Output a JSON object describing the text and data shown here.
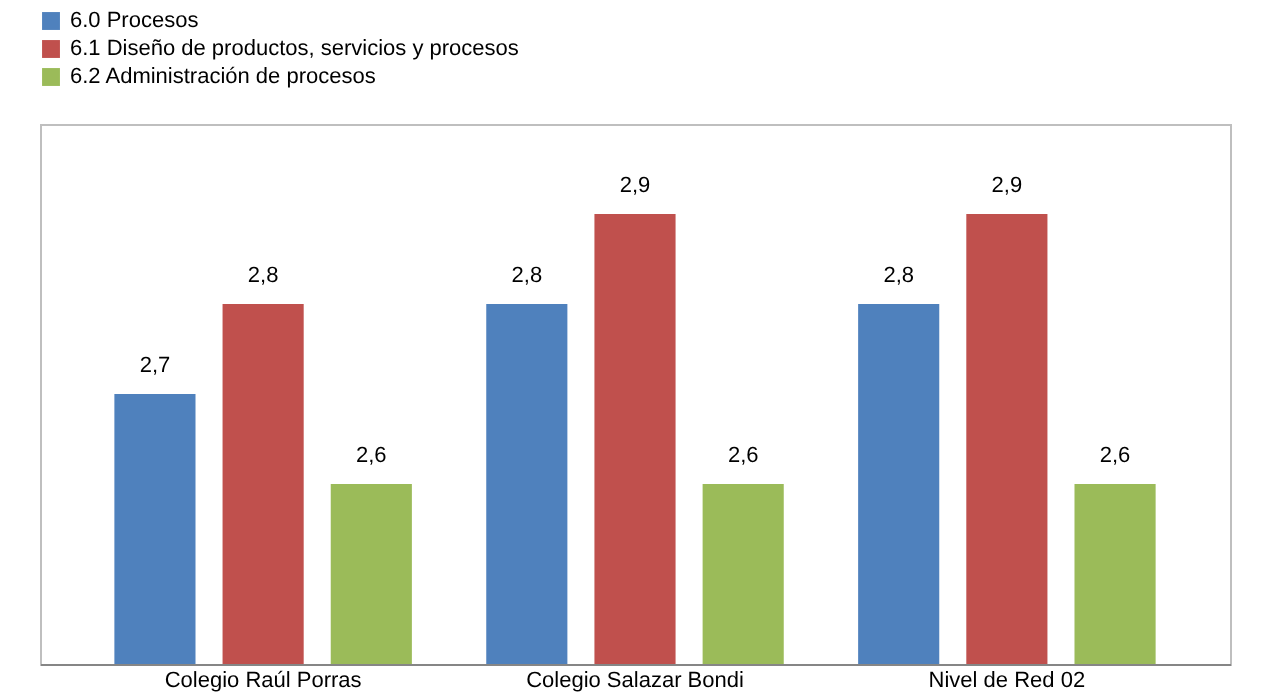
{
  "chart_data": {
    "type": "bar",
    "categories": [
      "Colegio Raúl Porras",
      "Colegio Salazar Bondi",
      "Nivel de Red 02"
    ],
    "series": [
      {
        "name": "6.0 Procesos",
        "color": "#4f81bd",
        "values": [
          2.7,
          2.8,
          2.8
        ],
        "value_labels": [
          "2,7",
          "2,8",
          "2,8"
        ]
      },
      {
        "name": "6.1 Diseño de productos, servicios y procesos",
        "color": "#c0504d",
        "values": [
          2.8,
          2.9,
          2.9
        ],
        "value_labels": [
          "2,8",
          "2,9",
          "2,9"
        ]
      },
      {
        "name": "6.2 Administración de procesos",
        "color": "#9bbb59",
        "values": [
          2.6,
          2.6,
          2.6
        ],
        "value_labels": [
          "2,6",
          "2,6",
          "2,6"
        ]
      }
    ],
    "ylim": [
      2.4,
      3.0
    ],
    "tick_labels": "x",
    "legend": "top",
    "grid": false
  }
}
